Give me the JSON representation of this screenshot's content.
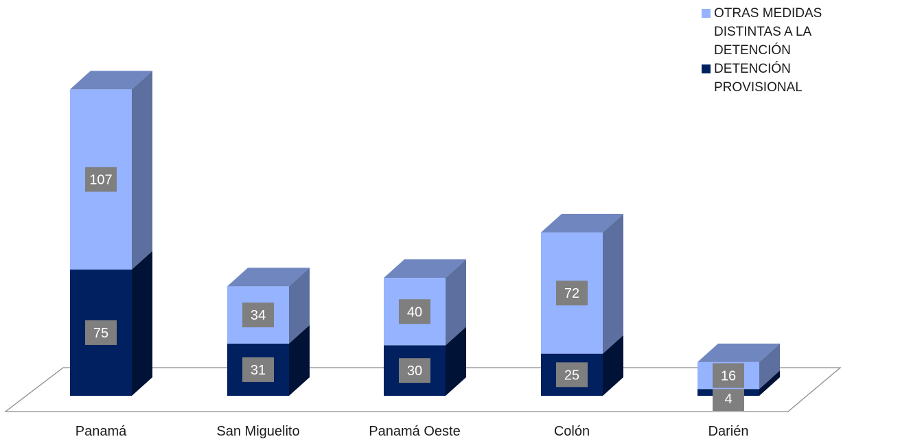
{
  "chart_data": {
    "type": "bar",
    "stacked": true,
    "style": "3d",
    "categories": [
      "Panamá",
      "San Miguelito",
      "Panamá Oeste",
      "Colón",
      "Darién"
    ],
    "series": [
      {
        "name": "DETENCIÓN PROVISIONAL",
        "values": [
          75,
          31,
          30,
          25,
          4
        ],
        "color": "#002060"
      },
      {
        "name": "OTRAS MEDIDAS DISTINTAS A LA DETENCIÓN",
        "values": [
          107,
          34,
          40,
          72,
          16
        ],
        "color": "#95B3FF"
      }
    ],
    "data_label_background": "#7F7F7F",
    "legend": {
      "position": "top-right"
    },
    "grid": false,
    "ylim": [
      0,
      190
    ],
    "title": "",
    "xlabel": "",
    "ylabel": ""
  }
}
